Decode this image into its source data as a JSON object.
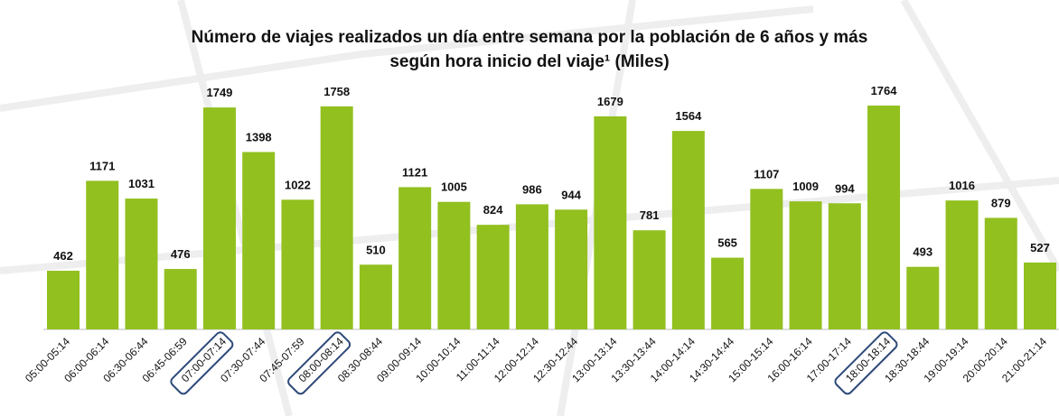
{
  "chart_data": {
    "type": "bar",
    "title": "Número de viajes realizados un día entre semana por la población de 6 años y más según hora inicio del viaje¹ (Miles)",
    "categories": [
      "05:00-05:14",
      "06:00-06:14",
      "06:30-06:44",
      "06:45-06:59",
      "07:00-07:14",
      "07:30-07:44",
      "07:45-07:59",
      "08:00-08:14",
      "08:30-08:44",
      "09:00-09:14",
      "10:00-10:14",
      "11:00-11:14",
      "12:00-12:14",
      "12:30-12:44",
      "13:00-13:14",
      "13:30-13:44",
      "14:00-14:14",
      "14:30-14:44",
      "15:00-15:14",
      "16:00-16:14",
      "17:00-17:14",
      "18:00-18:14",
      "18:30-18:44",
      "19:00-19:14",
      "20:00-20:14",
      "21:00-21:14"
    ],
    "values": [
      462,
      1171,
      1031,
      476,
      1749,
      1398,
      1022,
      1758,
      510,
      1121,
      1005,
      824,
      986,
      944,
      1679,
      781,
      1564,
      565,
      1107,
      1009,
      994,
      1764,
      493,
      1016,
      879,
      527
    ],
    "color": "#92c01f",
    "highlighted": [
      4,
      7,
      21
    ],
    "highlight_color": "#2e4a78"
  }
}
